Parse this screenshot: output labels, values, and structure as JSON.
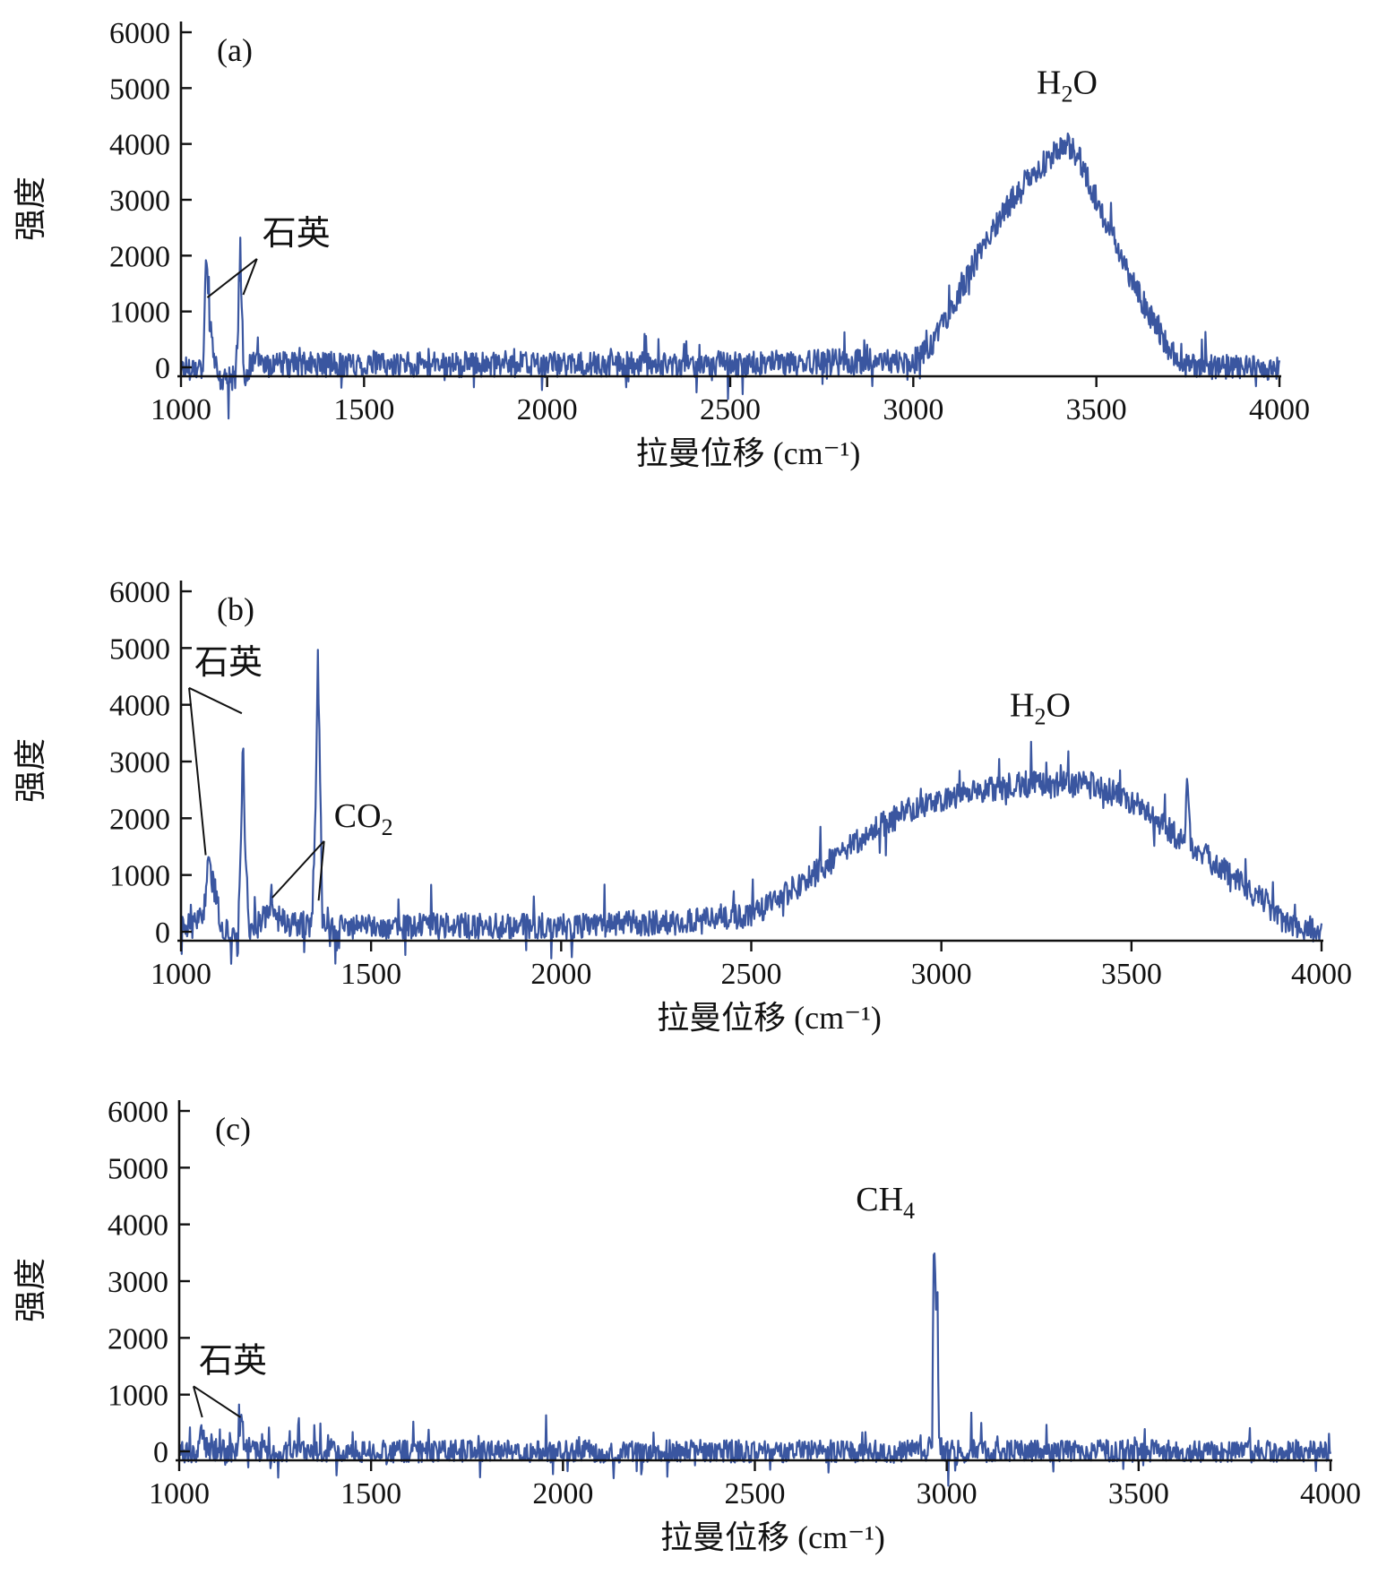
{
  "colors": {
    "series": "#3a56a0",
    "axis": "#111111"
  },
  "chart_data": [
    {
      "type": "line",
      "panel": "(a)",
      "xlabel": "拉曼位移 (cm⁻¹)",
      "ylabel": "强度",
      "xlim": [
        1000,
        4000
      ],
      "ylim": [
        0,
        6000
      ],
      "xticks": [
        "1000",
        "1500",
        "2000",
        "2500",
        "3000",
        "3500",
        "4000"
      ],
      "yticks": [
        "0",
        "1000",
        "2000",
        "3000",
        "4000",
        "5000",
        "6000"
      ],
      "noise": 230,
      "series": [
        {
          "values_x": [
            1060,
            1068,
            1072,
            1078,
            1083,
            1090,
            1100,
            1115,
            1150,
            1158,
            1162,
            1166,
            1172,
            1185,
            1200,
            1250,
            1500,
            2000,
            2500,
            2800,
            2950,
            3000,
            3050,
            3100,
            3200,
            3300,
            3400,
            3420,
            3450,
            3500,
            3600,
            3700,
            3750,
            3800,
            4000
          ],
          "values_y": [
            0,
            1900,
            1700,
            500,
            800,
            200,
            -200,
            -250,
            -150,
            1200,
            2300,
            1000,
            -200,
            0,
            50,
            50,
            50,
            50,
            50,
            100,
            100,
            100,
            400,
            1000,
            2300,
            3300,
            3900,
            4000,
            3800,
            3000,
            1500,
            300,
            0,
            0,
            0
          ]
        }
      ],
      "annotations": [
        {
          "text": "石英",
          "x": 1315,
          "y": 2200,
          "points": [
            [
              1072,
              1250
            ],
            [
              1170,
              1300
            ]
          ]
        },
        {
          "text": "H",
          "sub": "2",
          "tail": "O",
          "x": 3420,
          "y": 4900
        }
      ]
    },
    {
      "type": "line",
      "panel": "(b)",
      "xlabel": "拉曼位移 (cm⁻¹)",
      "ylabel": "强度",
      "xlim": [
        1000,
        4000
      ],
      "ylim": [
        0,
        6000
      ],
      "xticks": [
        "1000",
        "1500",
        "2000",
        "2500",
        "3000",
        "3500",
        "4000"
      ],
      "yticks": [
        "0",
        "1000",
        "2000",
        "3000",
        "4000",
        "5000",
        "6000"
      ],
      "noise": 230,
      "series": [
        {
          "values_x": [
            1000,
            1040,
            1060,
            1072,
            1090,
            1110,
            1150,
            1158,
            1163,
            1168,
            1180,
            1200,
            1225,
            1238,
            1255,
            1280,
            1345,
            1355,
            1360,
            1372,
            1400,
            1500,
            2000,
            2400,
            2500,
            2600,
            2700,
            2800,
            2900,
            3000,
            3100,
            3200,
            3300,
            3400,
            3500,
            3600,
            3640,
            3647,
            3655,
            3700,
            3800,
            3900,
            4000
          ],
          "values_y": [
            100,
            100,
            400,
            1200,
            700,
            0,
            0,
            1500,
            3700,
            1500,
            100,
            100,
            300,
            600,
            250,
            100,
            150,
            2500,
            4900,
            300,
            100,
            100,
            100,
            200,
            300,
            700,
            1200,
            1700,
            2100,
            2300,
            2500,
            2600,
            2600,
            2600,
            2300,
            1800,
            1550,
            2900,
            1500,
            1300,
            800,
            200,
            0
          ]
        }
      ],
      "annotations": [
        {
          "text": "石英",
          "x": 1125,
          "y": 4550,
          "points": [
            [
              1065,
              1350
            ],
            [
              1160,
              3850
            ]
          ]
        },
        {
          "text": "CO",
          "sub": "2",
          "tail": "",
          "x": 1480,
          "y": 1850,
          "points": [
            [
              1240,
              600
            ],
            [
              1362,
              550
            ]
          ]
        },
        {
          "text": "H",
          "sub": "2",
          "tail": "O",
          "x": 3260,
          "y": 3800
        }
      ]
    },
    {
      "type": "line",
      "panel": "(c)",
      "xlabel": "拉曼位移 (cm⁻¹)",
      "ylabel": "强度",
      "xlim": [
        1000,
        4000
      ],
      "ylim": [
        0,
        6000
      ],
      "xticks": [
        "1000",
        "1500",
        "2000",
        "2500",
        "3000",
        "3500",
        "4000"
      ],
      "yticks": [
        "0",
        "1000",
        "2000",
        "3000",
        "4000",
        "5000",
        "6000"
      ],
      "noise": 200,
      "series": [
        {
          "values_x": [
            1000,
            1050,
            1060,
            1070,
            1080,
            1150,
            1158,
            1162,
            1170,
            1200,
            1500,
            2000,
            2500,
            2900,
            2950,
            2962,
            2966,
            2972,
            2976,
            2980,
            2990,
            3000,
            3500,
            4000
          ],
          "values_y": [
            0,
            0,
            400,
            100,
            0,
            0,
            400,
            600,
            100,
            0,
            0,
            0,
            0,
            0,
            0,
            200,
            3950,
            2500,
            2750,
            100,
            0,
            0,
            0,
            0
          ]
        }
      ],
      "annotations": [
        {
          "text": "石英",
          "x": 1140,
          "y": 1400,
          "points": [
            [
              1060,
              600
            ],
            [
              1160,
              600
            ]
          ]
        },
        {
          "text": "CH",
          "sub": "4",
          "tail": "",
          "x": 2840,
          "y": 4250
        }
      ]
    }
  ]
}
